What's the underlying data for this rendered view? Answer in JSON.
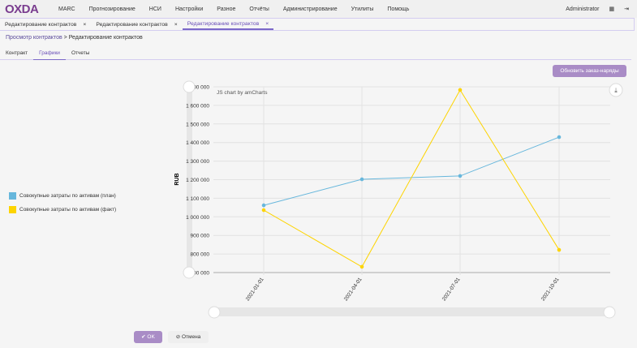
{
  "header": {
    "logo": "OXDA",
    "menu": [
      "MARC",
      "Прогнозирование",
      "НСИ",
      "Настройки",
      "Разное",
      "Отчёты",
      "Администрирование",
      "Утилиты",
      "Помощь"
    ],
    "user": "Administrator"
  },
  "tabs": [
    {
      "label": "Редактирование контрактов",
      "active": false
    },
    {
      "label": "Редактирование контрактов",
      "active": false
    },
    {
      "label": "Редактирование контрактов",
      "active": true
    }
  ],
  "breadcrumb": {
    "link": "Просмотр контрактов",
    "sep": ">",
    "current": "Редактирование контрактов"
  },
  "subtabs": [
    "Контракт",
    "Графики",
    "Отчеты"
  ],
  "update_button": "Обновить заказ-наряды",
  "ok_label": "OK",
  "cancel_label": "Отмена",
  "chart_data": {
    "type": "line",
    "credit": "JS chart by amCharts",
    "ylabel": "RUB",
    "ylim": [
      700000,
      1700000
    ],
    "yticks": [
      "700 000",
      "800 000",
      "900 000",
      "1 000 000",
      "1 100 000",
      "1 200 000",
      "1 300 000",
      "1 400 000",
      "1 500 000",
      "1 600 000",
      "1 700 000"
    ],
    "categories": [
      "2021-01-01",
      "2021-04-01",
      "2021-07-01",
      "2021-10-01"
    ],
    "series": [
      {
        "name": "Совокупные затраты по активам (план)",
        "color": "#67b7dc",
        "values": [
          1062000,
          1202000,
          1220000,
          1429000
        ]
      },
      {
        "name": "Совокупные затраты по активам (факт)",
        "color": "#fdd400",
        "values": [
          1036000,
          731000,
          1683000,
          822000
        ]
      }
    ]
  }
}
